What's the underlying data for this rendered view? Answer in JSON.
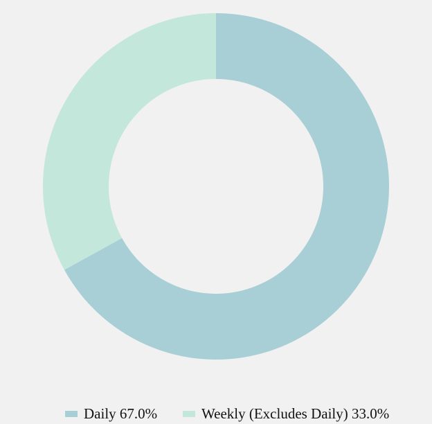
{
  "chart_data": {
    "type": "pie",
    "variant": "donut",
    "categories": [
      "Daily",
      "Weekly (Excludes Daily)"
    ],
    "values": [
      67.0,
      33.0
    ],
    "legend_labels": [
      "Daily 67.0%",
      "Weekly (Excludes Daily) 33.0%"
    ],
    "colors": [
      "#a8cfd5",
      "#c4e7dc"
    ],
    "legend_position": "bottom",
    "start_angle": "top",
    "direction": "clockwise"
  },
  "background": "#f1f1f1"
}
